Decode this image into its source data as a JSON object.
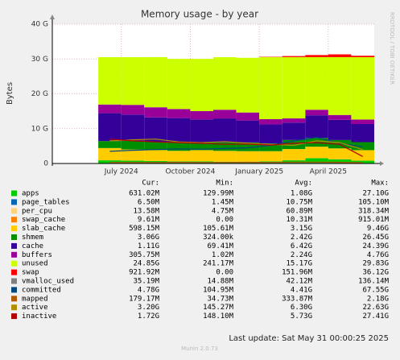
{
  "chart_data": {
    "type": "munin-area",
    "title": "Memory usage - by year",
    "ylabel": "Bytes",
    "side_text": "RRDTOOL / TOBI OETIKER",
    "last_update": "Last update: Sat May 31 00:00:25 2025",
    "footer": "Munin 2.0.73",
    "x": [
      "2024-06",
      "2024-07",
      "2024-08",
      "2024-09",
      "2024-10",
      "2024-11",
      "2024-12",
      "2025-01",
      "2025-02",
      "2025-03",
      "2025-04",
      "2025-05"
    ],
    "xlim": [
      "2024-04",
      "2025-06"
    ],
    "xticks": [
      {
        "value": "2024-07",
        "label": "July 2024"
      },
      {
        "value": "2024-10",
        "label": "October 2024"
      },
      {
        "value": "2025-01",
        "label": "January 2025"
      },
      {
        "value": "2025-04",
        "label": "April 2025"
      }
    ],
    "ylim": [
      0,
      40
    ],
    "yticks": [
      0,
      {
        "value": 10,
        "label": "10 G"
      },
      {
        "value": 20,
        "label": "20 G"
      },
      {
        "value": 30,
        "label": "30 G"
      },
      {
        "value": 40,
        "label": "40 G"
      }
    ],
    "grid": true,
    "legend_headers": [
      "Cur:",
      "Min:",
      "Avg:",
      "Max:"
    ],
    "series": [
      {
        "name": "apps",
        "color": "#00cc00",
        "kind": "stack",
        "values": [
          0.9,
          0.8,
          0.7,
          0.6,
          0.6,
          0.5,
          0.5,
          0.6,
          0.9,
          1.5,
          1.2,
          0.8
        ],
        "stats": [
          "631.02M",
          "129.99M",
          "1.08G",
          "27.10G"
        ]
      },
      {
        "name": "page_tables",
        "color": "#0066b3",
        "kind": "stack",
        "values": [
          0.01,
          0.01,
          0.01,
          0.01,
          0.01,
          0.01,
          0.01,
          0.01,
          0.01,
          0.01,
          0.01,
          0.01
        ],
        "stats": [
          "6.50M",
          "1.45M",
          "10.75M",
          "105.10M"
        ]
      },
      {
        "name": "per_cpu",
        "color": "#ffd280",
        "kind": "stack",
        "values": [
          0.01,
          0.01,
          0.01,
          0.01,
          0.01,
          0.01,
          0.01,
          0.01,
          0.01,
          0.01,
          0.01,
          0.01
        ],
        "stats": [
          "13.58M",
          "4.75M",
          "60.89M",
          "318.34M"
        ]
      },
      {
        "name": "swap_cache",
        "color": "#ff8000",
        "kind": "stack",
        "values": [
          0.01,
          0.01,
          0.02,
          0.01,
          0.01,
          0.01,
          0.02,
          0.01,
          0.02,
          0.01,
          0.01,
          0.01
        ],
        "stats": [
          "9.61M",
          "0.00",
          "10.31M",
          "915.01M"
        ]
      },
      {
        "name": "slab_cache",
        "color": "#ffcc00",
        "kind": "stack",
        "values": [
          3.5,
          3.2,
          3.1,
          3.0,
          3.2,
          3.1,
          3.0,
          2.9,
          3.2,
          3.3,
          3.1,
          3.0
        ],
        "stats": [
          "598.15M",
          "105.61M",
          "3.15G",
          "9.46G"
        ]
      },
      {
        "name": "shmem",
        "color": "#008f00",
        "kind": "stack",
        "values": [
          2.0,
          2.5,
          2.4,
          2.6,
          2.3,
          2.4,
          2.5,
          2.2,
          2.6,
          2.5,
          2.4,
          2.3
        ],
        "stats": [
          "3.06G",
          "324.00k",
          "2.42G",
          "26.45G"
        ]
      },
      {
        "name": "cache",
        "color": "#330099",
        "kind": "stack",
        "values": [
          8.0,
          7.5,
          7.0,
          6.8,
          6.5,
          6.9,
          6.3,
          5.5,
          5.0,
          6.5,
          5.8,
          5.2
        ],
        "stats": [
          "1.11G",
          "69.41M",
          "6.42G",
          "24.39G"
        ]
      },
      {
        "name": "buffers",
        "color": "#990099",
        "kind": "stack",
        "values": [
          2.5,
          2.8,
          2.9,
          2.6,
          2.4,
          2.5,
          2.3,
          1.5,
          1.2,
          1.6,
          1.4,
          1.3
        ],
        "stats": [
          "305.75M",
          "1.02M",
          "2.24G",
          "4.76G"
        ]
      },
      {
        "name": "unused",
        "color": "#ccff00",
        "kind": "stack",
        "values": [
          13.6,
          13.7,
          14.4,
          14.4,
          15.0,
          15.1,
          15.7,
          17.8,
          17.6,
          15.1,
          16.6,
          17.9
        ],
        "stats": [
          "24.85G",
          "241.17M",
          "15.17G",
          "29.83G"
        ]
      },
      {
        "name": "swap",
        "color": "#ff0000",
        "kind": "stack",
        "values": [
          0.0,
          0.0,
          0.0,
          0.0,
          0.0,
          0.0,
          0.0,
          0.1,
          0.3,
          0.6,
          0.8,
          0.4
        ],
        "stats": [
          "921.92M",
          "0.00",
          "151.96M",
          "36.12G"
        ]
      },
      {
        "name": "vmalloc_used",
        "color": "#808080",
        "kind": "line",
        "values": [
          0.04,
          0.04,
          0.04,
          0.04,
          0.04,
          0.04,
          0.04,
          0.04,
          0.04,
          0.04,
          0.04,
          0.04
        ],
        "stats": [
          "35.19M",
          "14.88M",
          "42.12M",
          "136.14M"
        ]
      },
      {
        "name": "committed",
        "color": "#00487d",
        "kind": "line",
        "values": [
          3.5,
          3.8,
          4.0,
          4.2,
          4.1,
          4.3,
          4.5,
          5.2,
          6.5,
          7.5,
          5.8,
          4.8
        ],
        "stats": [
          "4.78G",
          "104.95M",
          "4.41G",
          "67.55G"
        ]
      },
      {
        "name": "mapped",
        "color": "#b35a00",
        "kind": "line",
        "values": [
          0.3,
          0.3,
          0.3,
          0.35,
          0.3,
          0.3,
          0.35,
          0.3,
          0.4,
          0.4,
          0.35,
          0.2
        ],
        "stats": [
          "179.17M",
          "34.73M",
          "333.87M",
          "2.18G"
        ]
      },
      {
        "name": "active",
        "color": "#b38f00",
        "kind": "line",
        "values": [
          6.5,
          6.8,
          7.0,
          6.2,
          6.0,
          6.3,
          5.8,
          5.5,
          5.2,
          6.5,
          6.0,
          4.0
        ],
        "stats": [
          "3.20G",
          "145.27M",
          "6.30G",
          "22.63G"
        ]
      },
      {
        "name": "inactive",
        "color": "#b30000",
        "kind": "line",
        "values": [
          7.0,
          6.5,
          6.2,
          6.0,
          5.8,
          5.5,
          5.6,
          5.3,
          5.8,
          6.0,
          5.5,
          2.0
        ],
        "stats": [
          "1.72G",
          "148.10M",
          "5.73G",
          "27.41G"
        ]
      }
    ]
  }
}
